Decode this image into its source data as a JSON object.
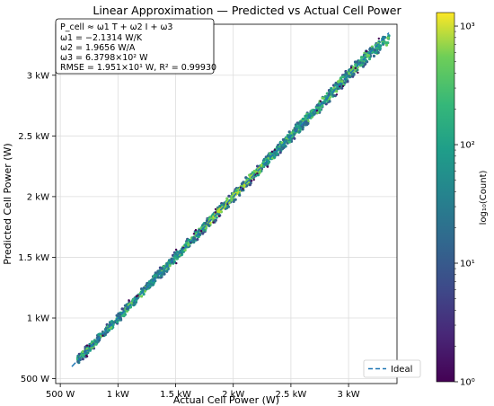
{
  "chart_data": {
    "type": "heatmap",
    "title": "Linear Approximation — Predicted vs Actual Cell Power",
    "xlabel": "Actual Cell Power (W)",
    "ylabel": "Predicted Cell Power (W)",
    "xlim": [
      460,
      3420
    ],
    "ylim": [
      460,
      3420
    ],
    "xticks": [
      {
        "value": 500,
        "label": "500 W"
      },
      {
        "value": 1000,
        "label": "1 kW"
      },
      {
        "value": 1500,
        "label": "1.5 kW"
      },
      {
        "value": 2000,
        "label": "2 kW"
      },
      {
        "value": 2500,
        "label": "2.5 kW"
      },
      {
        "value": 3000,
        "label": "3 kW"
      }
    ],
    "yticks": [
      {
        "value": 500,
        "label": "500 W"
      },
      {
        "value": 1000,
        "label": "1 kW"
      },
      {
        "value": 1500,
        "label": "1.5 kW"
      },
      {
        "value": 2000,
        "label": "2 kW"
      },
      {
        "value": 2500,
        "label": "2.5 kW"
      },
      {
        "value": 3000,
        "label": "3 kW"
      }
    ],
    "grid": true,
    "density": {
      "x_range": [
        650,
        3350
      ],
      "band_halfwidth": [
        40,
        60
      ],
      "description_points": [
        {
          "x": 700,
          "y": 700,
          "count": 20
        },
        {
          "x": 1000,
          "y": 1000,
          "count": 80
        },
        {
          "x": 1500,
          "y": 1500,
          "count": 150
        },
        {
          "x": 2000,
          "y": 2000,
          "count": 300
        },
        {
          "x": 2500,
          "y": 2500,
          "count": 150
        },
        {
          "x": 3000,
          "y": 3000,
          "count": 80
        },
        {
          "x": 3300,
          "y": 3250,
          "count": 30
        }
      ]
    },
    "ideal_line": {
      "name": "Ideal",
      "x": [
        600,
        3350
      ],
      "y": [
        600,
        3350
      ],
      "color": "#1f77b4",
      "style": "dashed"
    },
    "legend": {
      "placement": "bottom-right",
      "entries": [
        "Ideal"
      ]
    },
    "annotation": {
      "lines": [
        "P_cell ≈ ω1 T + ω2 I + ω3",
        "ω1 = −2.1314 W/K",
        "ω2 = 1.9656 W/A",
        "ω3 = 6.3798×10² W",
        "RMSE = 1.951×10¹ W,  R² = 0.99930"
      ],
      "placement": "top-left"
    },
    "colorbar": {
      "label": "log₁₀(Count)",
      "scale": "log",
      "range": [
        1,
        1300
      ],
      "ticks": [
        {
          "value": 1,
          "label": "10⁰"
        },
        {
          "value": 10,
          "label": "10¹"
        },
        {
          "value": 100,
          "label": "10²"
        },
        {
          "value": 1000,
          "label": "10³"
        }
      ],
      "colormap": "viridis"
    }
  }
}
